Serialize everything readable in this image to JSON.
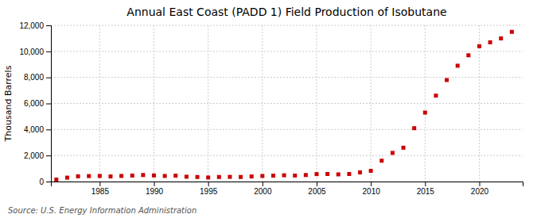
{
  "chart_data": {
    "type": "scatter",
    "title": "Annual East Coast (PADD 1) Field Production of Isobutane",
    "y_label": "Thousand Barrels",
    "source": "Source: U.S. Energy Information Administration",
    "color": "#cc0000",
    "marker": "square",
    "grid": true,
    "x": [
      1981,
      1982,
      1983,
      1984,
      1985,
      1986,
      1987,
      1988,
      1989,
      1990,
      1991,
      1992,
      1993,
      1994,
      1995,
      1996,
      1997,
      1998,
      1999,
      2000,
      2001,
      2002,
      2003,
      2004,
      2005,
      2006,
      2007,
      2008,
      2009,
      2010,
      2011,
      2012,
      2013,
      2014,
      2015,
      2016,
      2017,
      2018,
      2019,
      2020,
      2021,
      2022,
      2023
    ],
    "values": [
      150,
      300,
      400,
      420,
      430,
      390,
      430,
      460,
      500,
      470,
      430,
      450,
      370,
      350,
      310,
      350,
      360,
      350,
      390,
      430,
      450,
      480,
      460,
      500,
      570,
      580,
      550,
      580,
      700,
      820,
      1600,
      2200,
      2600,
      4100,
      5300,
      6600,
      7800,
      8900,
      9700,
      10400,
      10700,
      11000,
      11500
    ],
    "xlim": [
      1980.5,
      2024
    ],
    "xticks": [
      1985,
      1990,
      1995,
      2000,
      2005,
      2010,
      2015,
      2020
    ],
    "ylim": [
      0,
      12000
    ],
    "yticks": [
      0,
      {
        "value": 2000,
        "label": "2,000"
      },
      {
        "value": 4000,
        "label": "4,000"
      },
      {
        "value": 6000,
        "label": "6,000"
      },
      {
        "value": 8000,
        "label": "8,000"
      },
      {
        "value": 10000,
        "label": "10,000"
      },
      {
        "value": 12000,
        "label": "12,000"
      }
    ]
  }
}
